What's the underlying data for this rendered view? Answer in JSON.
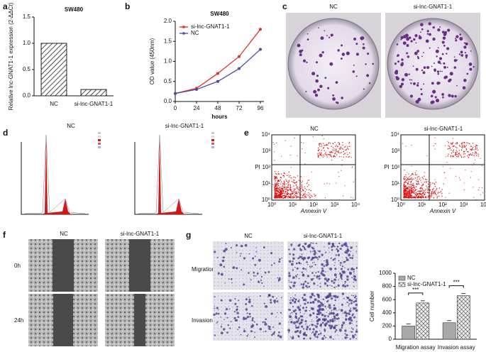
{
  "panel_letters": [
    "a",
    "b",
    "c",
    "d",
    "e",
    "f",
    "g"
  ],
  "chart_data": [
    {
      "type": "bar",
      "title": "SW480",
      "y_label": "Relative lnc-GNAT1-1 expression (2-ΔΔCt)",
      "categories": [
        "NC",
        "si-lnc-GNAT1-1"
      ],
      "values": [
        1.0,
        0.12
      ],
      "color": "#222222",
      "fill": "hatch",
      "ylim": [
        0,
        1.5
      ],
      "yticks": [
        {
          "value": 0,
          "label": "0.0"
        },
        {
          "value": 0.5,
          "label": "0.5"
        },
        {
          "value": 1.0,
          "label": "1.0"
        },
        {
          "value": 1.5,
          "label": "1.5"
        }
      ]
    },
    {
      "type": "line",
      "title": "SW480",
      "x_label": "hours",
      "y_label": "OD value (450nm)",
      "x": [
        0,
        24,
        48,
        72,
        96
      ],
      "series": [
        {
          "name": "si-lnc-GNAT1-1",
          "color": "#e0302a",
          "values": [
            0.2,
            0.33,
            0.7,
            1.12,
            1.8
          ]
        },
        {
          "name": "NC",
          "color": "#4a4aa8",
          "values": [
            0.2,
            0.3,
            0.5,
            0.82,
            1.3
          ]
        }
      ],
      "xlim": [
        0,
        100
      ],
      "xticks": [
        0,
        24,
        48,
        72,
        96
      ],
      "ylim": [
        0,
        2.0
      ],
      "yticks": [
        {
          "value": 0,
          "label": "0.0"
        },
        {
          "value": 0.5,
          "label": "0.5"
        },
        {
          "value": 1.0,
          "label": "1.0"
        },
        {
          "value": 1.5,
          "label": "1.5"
        },
        {
          "value": 2.0,
          "label": "2.0"
        }
      ]
    },
    {
      "type": "bar",
      "y_label": "Cell number",
      "categories": [
        "Migration assay",
        "Invasion assay"
      ],
      "series": [
        {
          "name": "NC",
          "color": "#a8a8a8",
          "values": [
            200,
            250
          ]
        },
        {
          "name": "si-lnc-GNAT1-1",
          "color": "#444444",
          "fill": "check",
          "values": [
            550,
            660
          ]
        }
      ],
      "annotations": [
        "***",
        "***"
      ],
      "ylim": [
        0,
        1000
      ],
      "yticks": [
        0,
        200,
        400,
        600,
        800,
        1000
      ]
    }
  ],
  "figure": {
    "c": [
      "NC",
      "si-lnc-GNAT1-1"
    ],
    "d": [
      "NC",
      "si-lnc-GNAT1-1"
    ],
    "e": {
      "titles": [
        "NC",
        "si-lnc-GNAT1-1"
      ],
      "y_label": "PI",
      "x_label": "Annexin V",
      "ticks": [
        "10⁰",
        "10¹",
        "10²",
        "10³",
        "10⁴"
      ]
    },
    "f": {
      "columns": [
        "NC",
        "si-lnc-GNAT1-1"
      ],
      "rows": [
        "0h",
        "24h"
      ]
    },
    "g": {
      "columns": [
        "NC",
        "si-lnc-GNAT1-1"
      ],
      "rows": [
        "Migration",
        "Invasion"
      ]
    }
  }
}
